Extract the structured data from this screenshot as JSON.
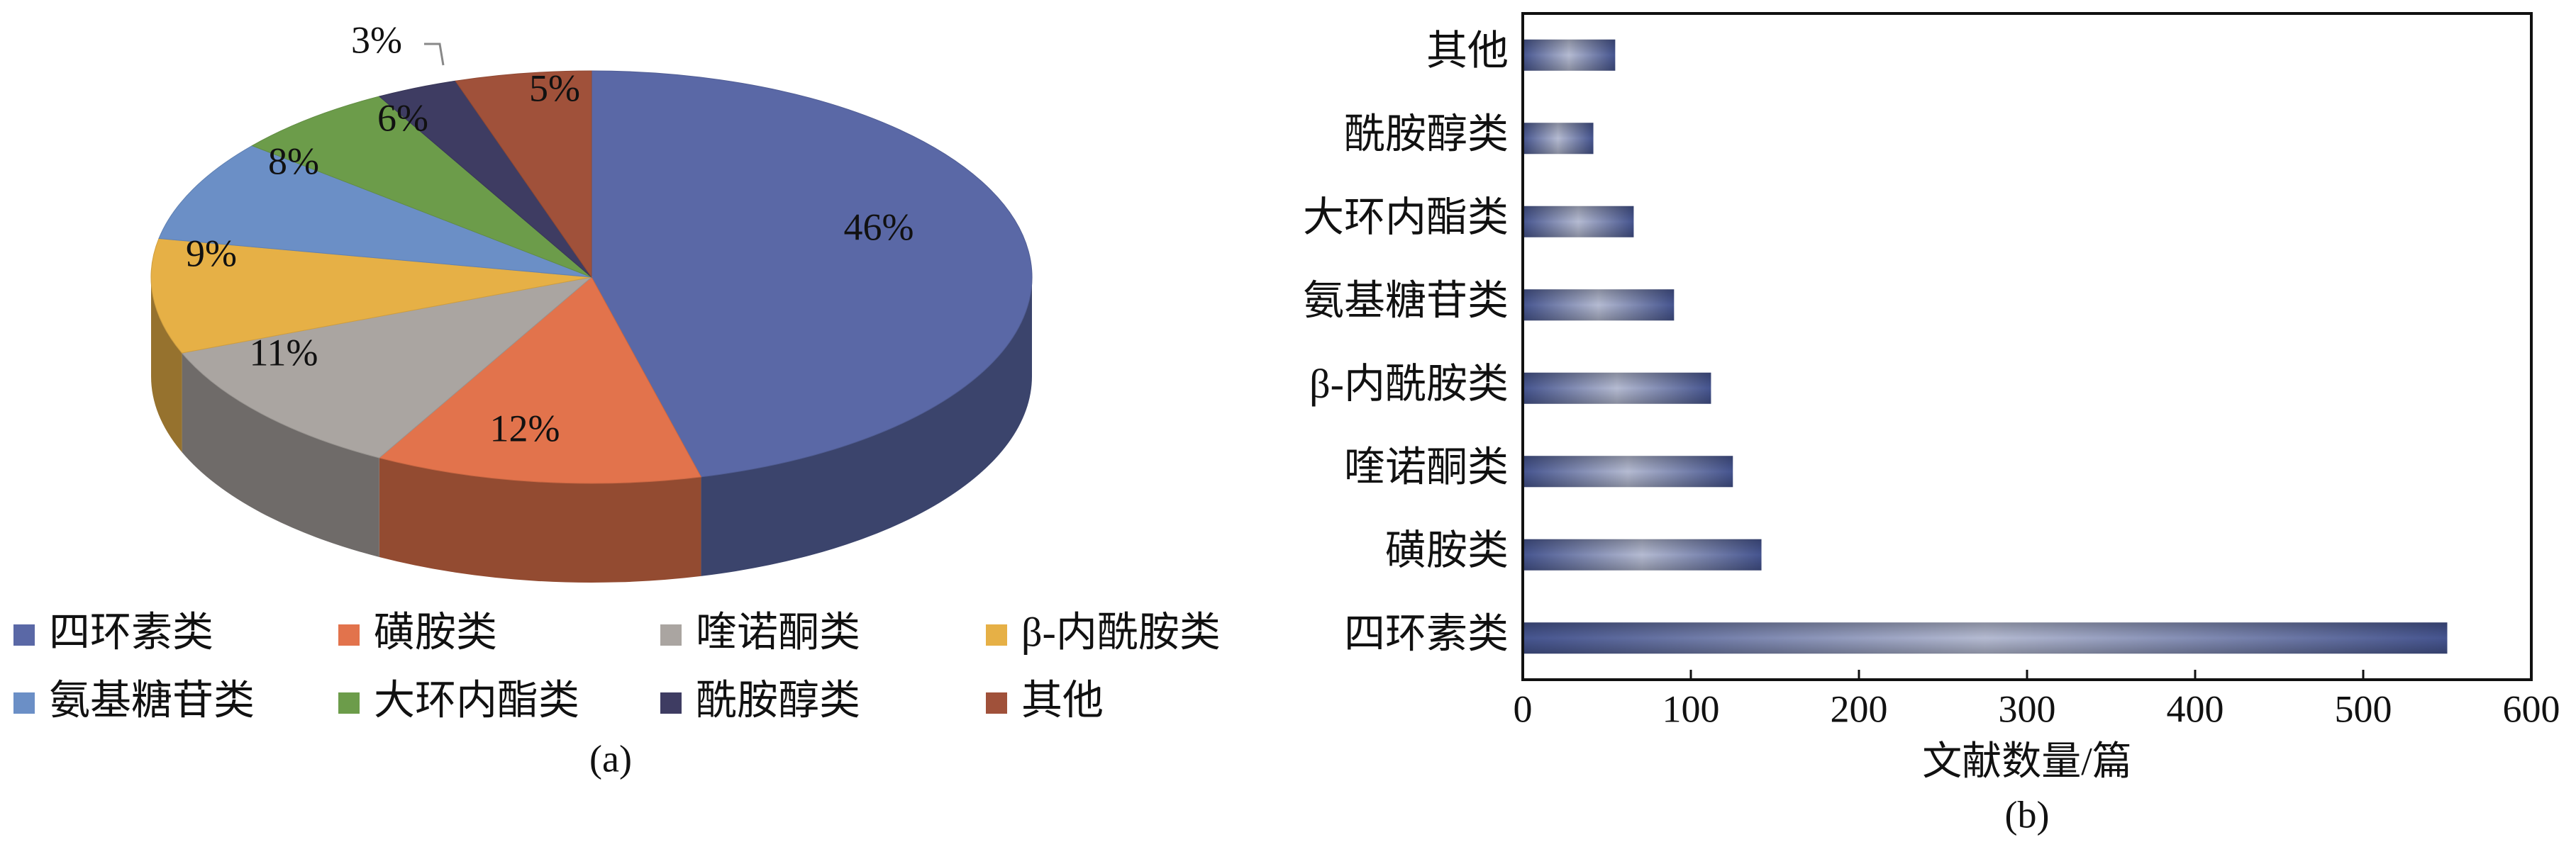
{
  "chart_data": [
    {
      "type": "pie",
      "categories": [
        "四环素类",
        "磺胺类",
        "喹诺酮类",
        "β-内酰胺类",
        "氨基糖苷类",
        "大环内酯类",
        "酰胺醇类",
        "其他"
      ],
      "values": [
        46,
        12,
        11,
        9,
        8,
        6,
        3,
        5
      ],
      "value_labels": [
        "46%",
        "12%",
        "11%",
        "9%",
        "8%",
        "6%",
        "3%",
        "5%"
      ],
      "colors": [
        "#5a68a6",
        "#e2734c",
        "#aaa5a1",
        "#e6b046",
        "#6b8fc6",
        "#6c9c4a",
        "#3e3c62",
        "#a0513a"
      ],
      "caption": "(a)"
    },
    {
      "type": "bar",
      "categories": [
        "四环素类",
        "磺胺类",
        "喹诺酮类",
        "β-内酰胺类",
        "氨基糖苷类",
        "大环内酯类",
        "酰胺醇类",
        "其他"
      ],
      "values": [
        550,
        142,
        125,
        112,
        90,
        66,
        42,
        55
      ],
      "color": "#45548f",
      "xlim": [
        0,
        600
      ],
      "xticks": [
        0,
        100,
        200,
        300,
        400,
        500,
        600
      ],
      "xlabel": "文献数量/篇",
      "caption": "(b)"
    }
  ]
}
